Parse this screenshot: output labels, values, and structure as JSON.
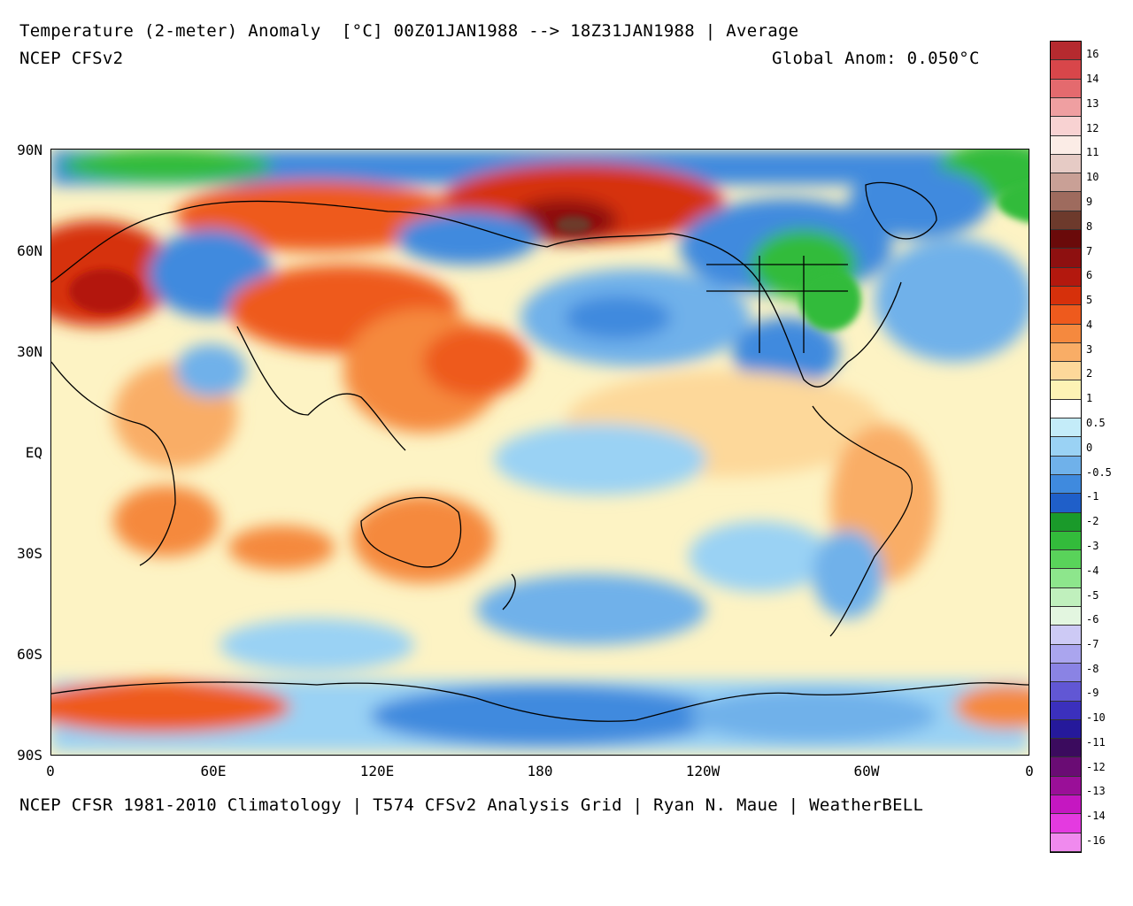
{
  "header": {
    "title": "Temperature (2-meter) Anomaly  [°C] 00Z01JAN1988 --> 18Z31JAN1988 | Average",
    "model": "NCEP CFSv2",
    "global_anom": "Global Anom: 0.050°C"
  },
  "footer": {
    "credit": "NCEP CFSR 1981-2010 Climatology | T574 CFSv2 Analysis Grid | Ryan N. Maue | WeatherBELL"
  },
  "map": {
    "lat_labels": [
      "90N",
      "60N",
      "30N",
      "EQ",
      "30S",
      "60S",
      "90S"
    ],
    "lon_labels": [
      "0",
      "60E",
      "120E",
      "180",
      "120W",
      "60W",
      "0"
    ]
  },
  "legend": {
    "labels": [
      "16",
      "14",
      "13",
      "12",
      "11",
      "10",
      "9",
      "8",
      "7",
      "6",
      "5",
      "4",
      "3",
      "2",
      "1",
      "0.5",
      "0",
      "-0.5",
      "-1",
      "-2",
      "-3",
      "-4",
      "-5",
      "-6",
      "-7",
      "-8",
      "-9",
      "-10",
      "-11",
      "-12",
      "-13",
      "-14",
      "-16"
    ],
    "colors": [
      "#b52a2f",
      "#d8464a",
      "#e46a6e",
      "#ef9fa1",
      "#f8d2d2",
      "#fbece6",
      "#e6cbc5",
      "#c9a096",
      "#9e6b5e",
      "#6d3a2c",
      "#6a0a0a",
      "#8e1010",
      "#b3180e",
      "#d6300b",
      "#ee5a1d",
      "#f5893e",
      "#f9ad66",
      "#fdd89a",
      "#fdf3b5",
      "#ffffff",
      "#c4ecf9",
      "#9ad2f4",
      "#6fb1ea",
      "#3f8ade",
      "#1f5fc9",
      "#1a9a2a",
      "#33bb3b",
      "#59d35a",
      "#8de68c",
      "#c0f0bd",
      "#e3f6e0",
      "#cdcaf5",
      "#aaa5ee",
      "#8a83e4",
      "#6157d4",
      "#3b30bd",
      "#25199b",
      "#3b0b5e",
      "#6a0c74",
      "#9a0f98",
      "#c517c1",
      "#e43ae0",
      "#f08aee"
    ]
  }
}
